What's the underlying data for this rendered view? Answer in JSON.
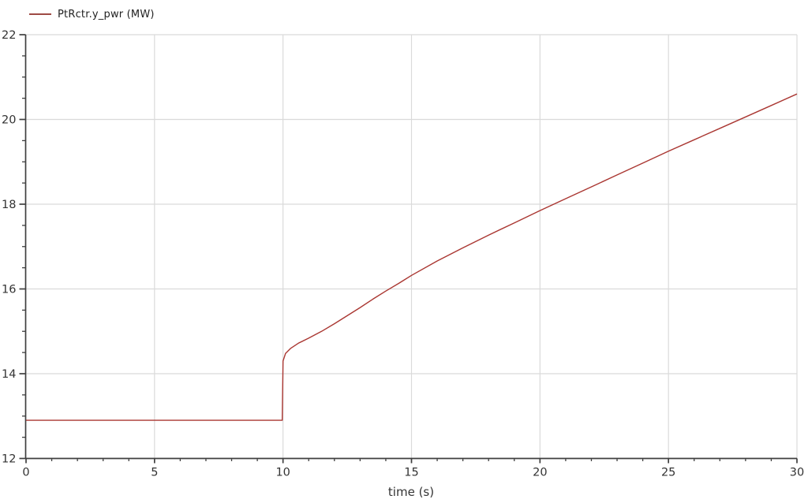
{
  "legend": {
    "label": "PtRctr.y_pwr (MW)",
    "color": "#9e4a44"
  },
  "axes": {
    "x": {
      "label": "time (s)",
      "min": 0,
      "max": 30,
      "major_ticks": [
        0,
        5,
        10,
        15,
        20,
        25,
        30
      ],
      "minor_step": 1
    },
    "y": {
      "min": 12,
      "max": 22,
      "major_ticks": [
        12,
        14,
        16,
        18,
        20,
        22
      ],
      "minor_step": 0.5
    }
  },
  "colors": {
    "background": "#ffffff",
    "axis": "#3f3f3f",
    "grid": "#dadada",
    "tick_text": "#333333",
    "series": "#aa3732"
  },
  "chart_data": {
    "type": "line",
    "title": "",
    "xlabel": "time (s)",
    "ylabel": "",
    "xlim": [
      0,
      30
    ],
    "ylim": [
      12,
      22
    ],
    "grid": true,
    "legend_position": "top-left",
    "series": [
      {
        "name": "PtRctr.y_pwr (MW)",
        "color": "#aa3732",
        "points": [
          [
            0,
            12.9
          ],
          [
            2,
            12.9
          ],
          [
            4,
            12.9
          ],
          [
            6,
            12.9
          ],
          [
            8,
            12.9
          ],
          [
            9.97,
            12.9
          ],
          [
            10,
            14.3
          ],
          [
            10.1,
            14.48
          ],
          [
            10.3,
            14.6
          ],
          [
            10.6,
            14.72
          ],
          [
            11,
            14.84
          ],
          [
            11.5,
            15.0
          ],
          [
            12,
            15.18
          ],
          [
            12.5,
            15.37
          ],
          [
            13,
            15.56
          ],
          [
            13.5,
            15.76
          ],
          [
            14,
            15.95
          ],
          [
            14.5,
            16.13
          ],
          [
            15,
            16.32
          ],
          [
            16,
            16.66
          ],
          [
            17,
            16.97
          ],
          [
            18,
            17.27
          ],
          [
            19,
            17.56
          ],
          [
            20,
            17.85
          ],
          [
            21,
            18.13
          ],
          [
            22,
            18.41
          ],
          [
            23,
            18.69
          ],
          [
            24,
            18.97
          ],
          [
            25,
            19.25
          ],
          [
            26,
            19.52
          ],
          [
            27,
            19.79
          ],
          [
            28,
            20.06
          ],
          [
            29,
            20.33
          ],
          [
            30,
            20.6
          ]
        ]
      }
    ]
  }
}
